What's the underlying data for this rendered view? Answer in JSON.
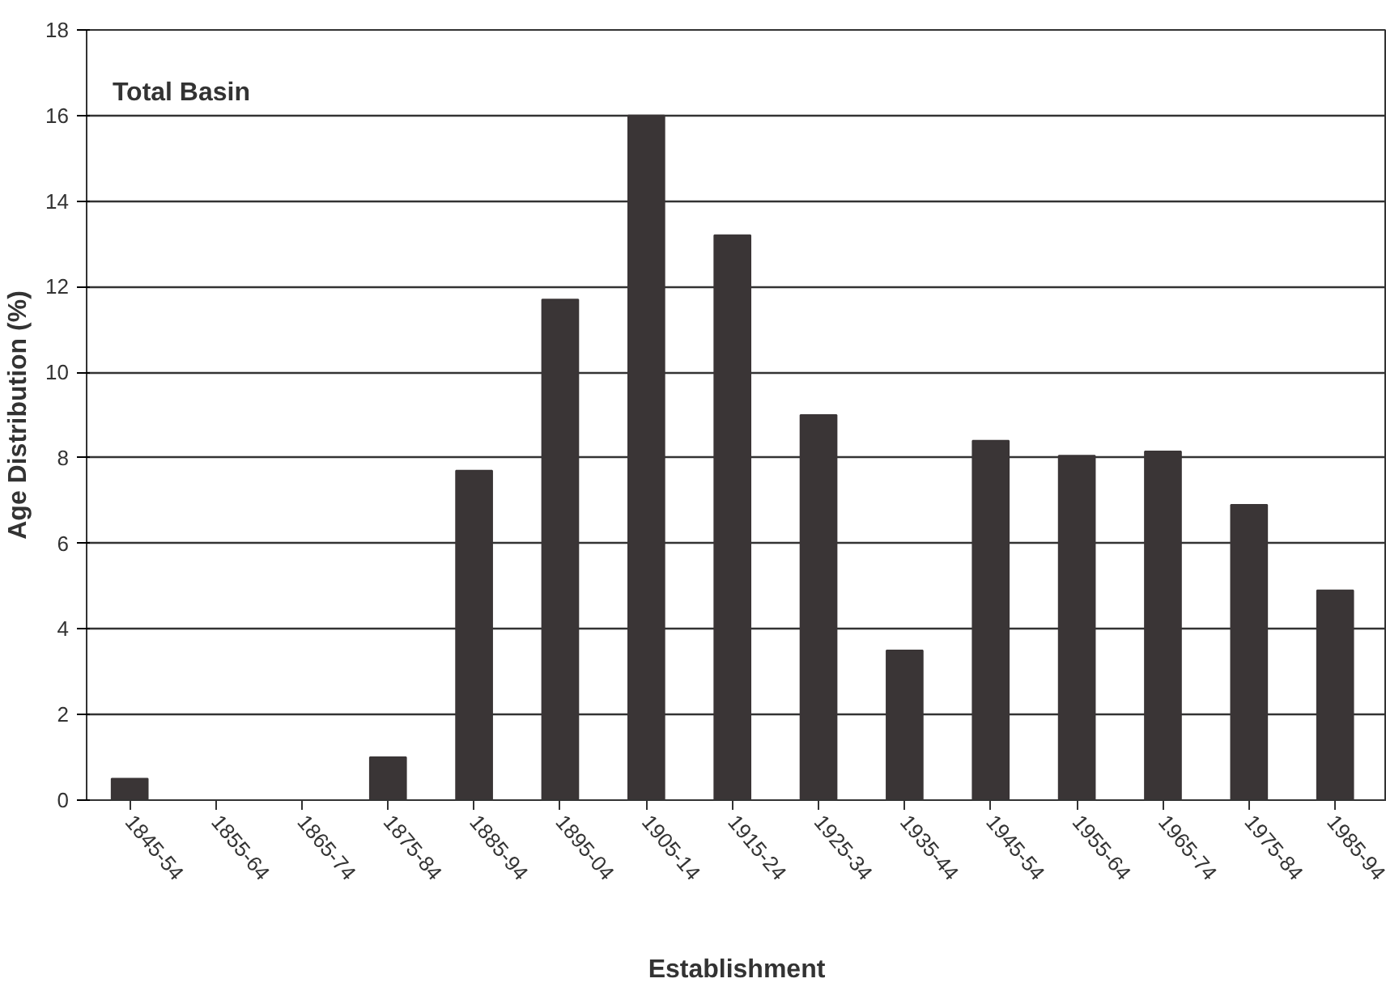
{
  "chart_data": {
    "type": "bar",
    "title": "Total Basin",
    "xlabel": "Establishment",
    "ylabel": "Age Distribution (%)",
    "categories": [
      "1845-54",
      "1855-64",
      "1865-74",
      "1875-84",
      "1885-94",
      "1895-04",
      "1905-14",
      "1915-24",
      "1925-34",
      "1935-44",
      "1945-54",
      "1955-64",
      "1965-74",
      "1975-84",
      "1985-94"
    ],
    "values": [
      0.5,
      0,
      0,
      1.0,
      7.7,
      11.7,
      16.0,
      13.2,
      9.0,
      3.5,
      8.4,
      8.05,
      8.15,
      6.9,
      4.9
    ],
    "color": "#3a3536",
    "ylim": [
      0,
      18
    ],
    "yticks": [
      0,
      2,
      4,
      6,
      8,
      10,
      12,
      14,
      16,
      18
    ],
    "grid": "y"
  }
}
